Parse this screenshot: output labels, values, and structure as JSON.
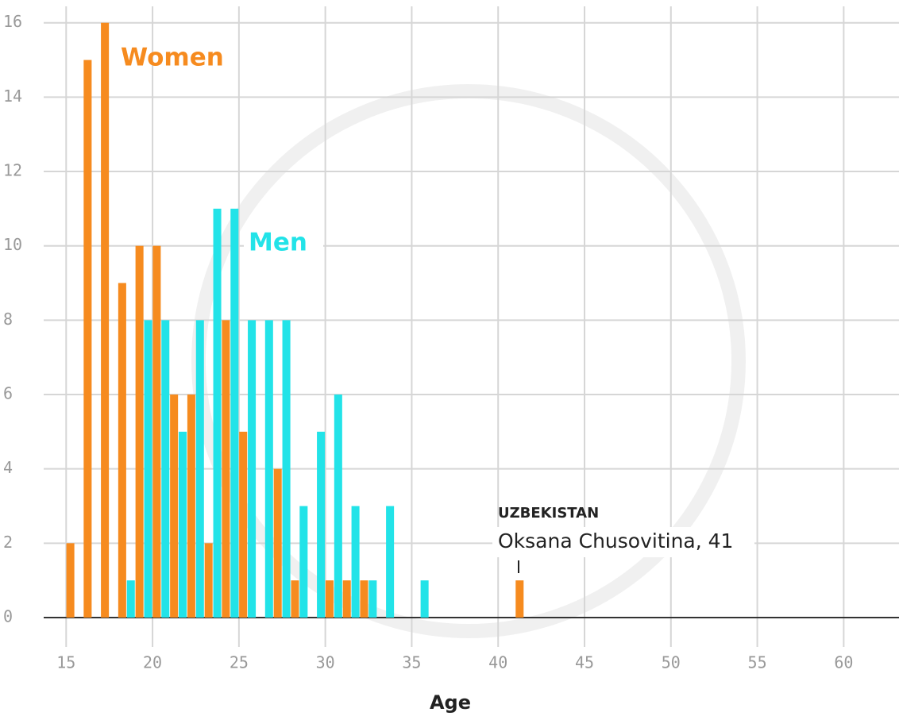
{
  "chart_data": {
    "type": "bar",
    "x_label": "Age",
    "x": [
      15,
      16,
      17,
      18,
      19,
      20,
      21,
      22,
      23,
      24,
      25,
      26,
      27,
      28,
      29,
      30,
      31,
      32,
      33,
      34,
      35,
      36,
      37,
      38,
      39,
      40,
      41
    ],
    "series": [
      {
        "name": "Women",
        "color": "#f68b1f",
        "values": [
          2,
          15,
          16,
          9,
          10,
          10,
          6,
          6,
          2,
          8,
          5,
          0,
          4,
          1,
          0,
          1,
          1,
          1,
          0,
          0,
          0,
          0,
          0,
          0,
          0,
          0,
          1
        ]
      },
      {
        "name": "Men",
        "color": "#22e3e8",
        "values": [
          0,
          0,
          0,
          1,
          8,
          8,
          5,
          8,
          11,
          11,
          8,
          8,
          8,
          3,
          5,
          6,
          3,
          1,
          3,
          0,
          1,
          0,
          0,
          0,
          0,
          0,
          0
        ]
      }
    ],
    "annotations": [
      {
        "title": "UZBEKISTAN",
        "text": "Oksana Chusovitina, 41"
      }
    ],
    "xlim": [
      13.7,
      63.2
    ],
    "xticks": [
      15,
      20,
      25,
      30,
      35,
      40,
      45,
      50,
      55,
      60
    ],
    "ylim": [
      0,
      16.4
    ],
    "yticks": [
      0,
      2,
      4,
      6,
      8,
      10,
      12,
      14,
      16
    ],
    "grid": true
  }
}
